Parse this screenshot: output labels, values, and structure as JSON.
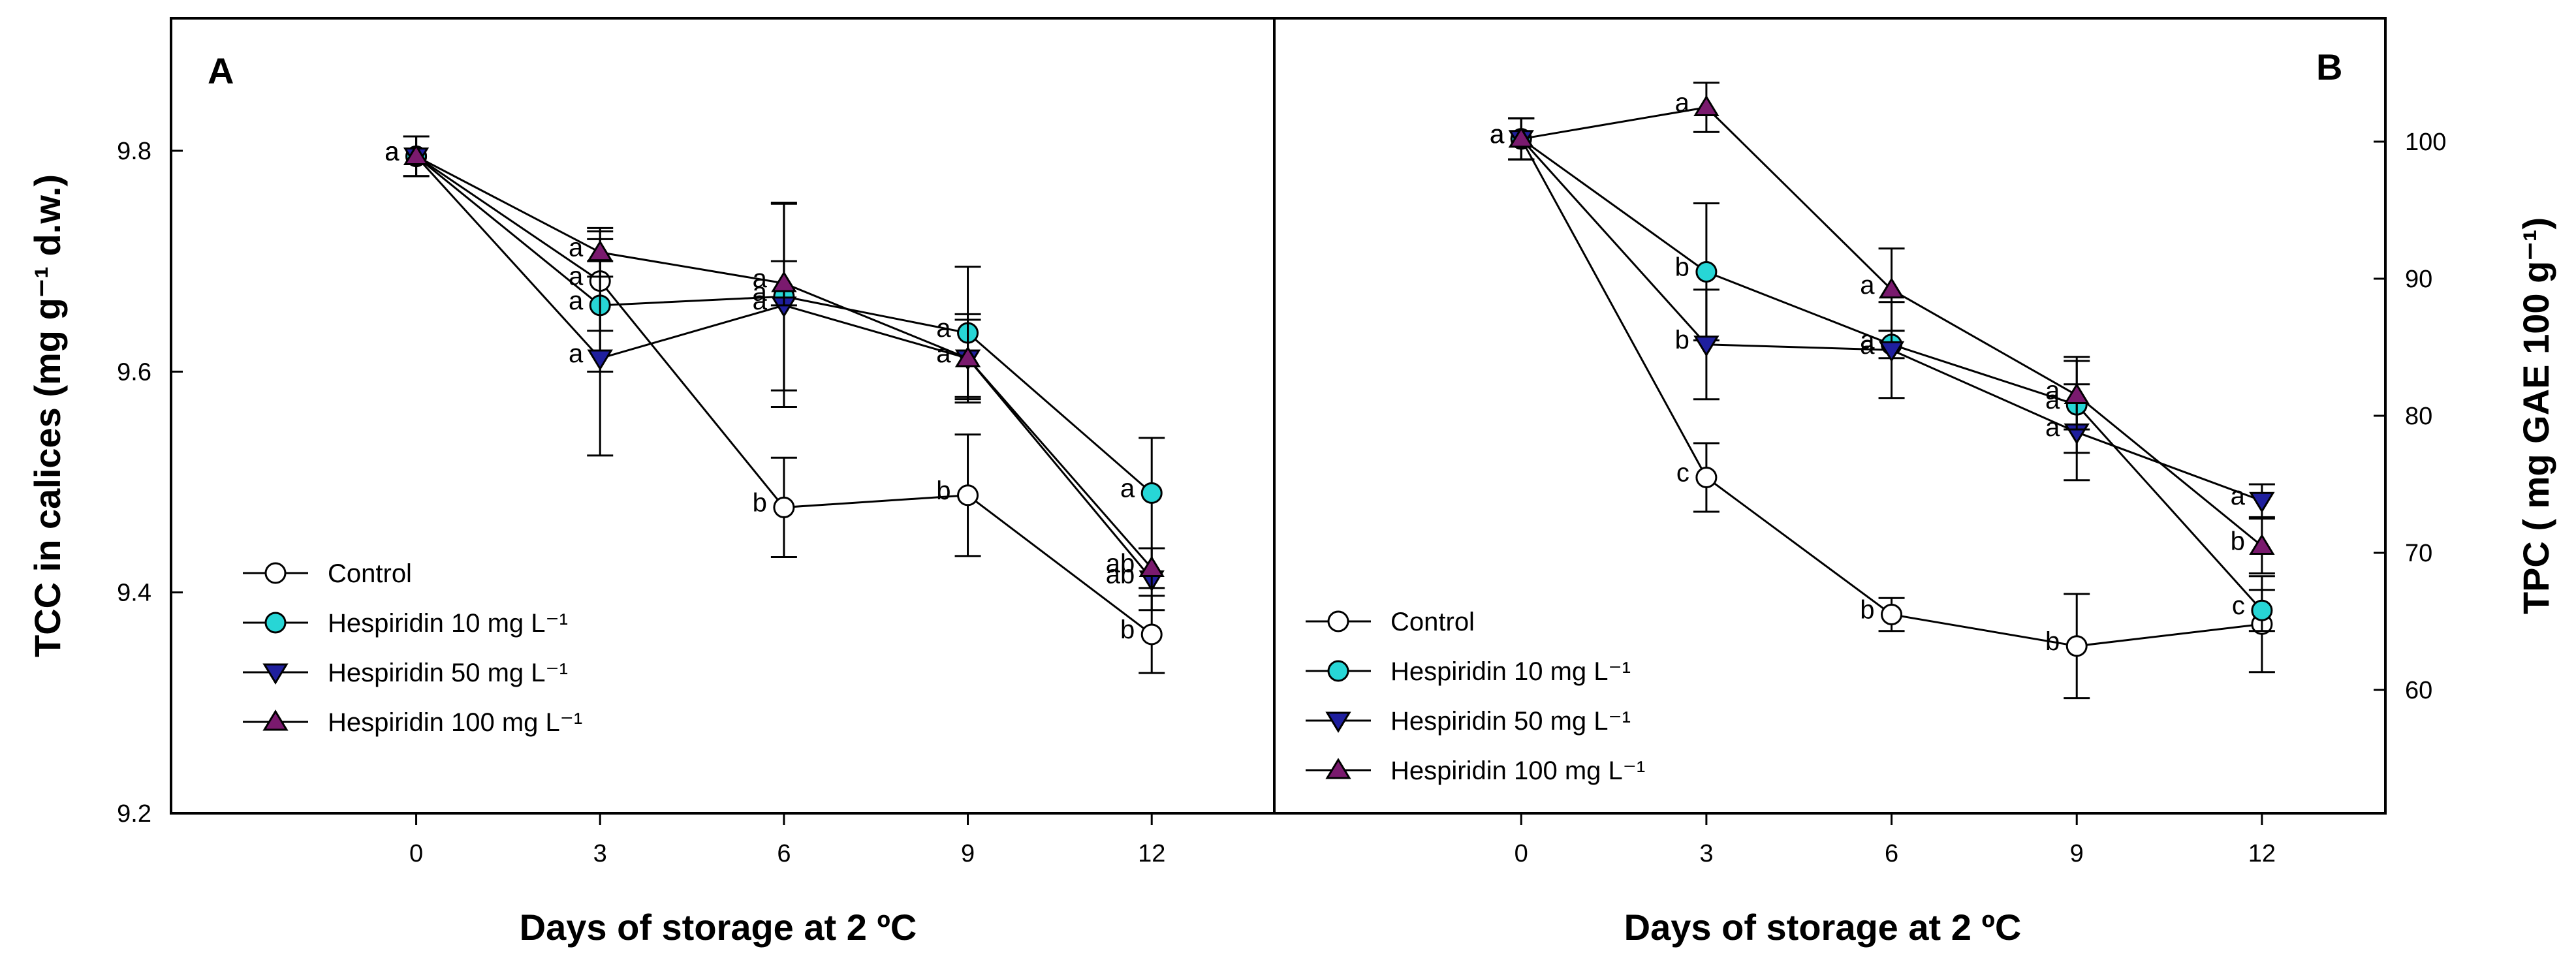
{
  "chart_data": [
    {
      "type": "line",
      "panel_label": "A",
      "xlabel": "Days of storage at 2 ºC",
      "ylabel": "TCC in calices (mg g⁻¹ d.w.)",
      "x": [
        0,
        3,
        6,
        9,
        12
      ],
      "x_ticks": [
        "0",
        "3",
        "6",
        "9",
        "12"
      ],
      "xlim": [
        -4,
        14
      ],
      "ylim": [
        9.2,
        9.92
      ],
      "y_ticks": [
        "9.2",
        "9.4",
        "9.6",
        "9.8"
      ],
      "legend_placement": "bottom-left",
      "grid": false,
      "series": [
        {
          "name": "Control",
          "marker": "circle",
          "color": "#ffffff",
          "values": [
            9.795,
            9.682,
            9.477,
            9.488,
            9.362
          ],
          "errors": [
            0.018,
            0.045,
            0.045,
            0.055,
            0.035
          ],
          "letters": [
            "a",
            "a",
            "b",
            "b",
            "b"
          ]
        },
        {
          "name": "Hespiridin 10 mg L⁻¹",
          "marker": "circle",
          "color": "#27d6d6",
          "values": [
            9.795,
            9.66,
            9.668,
            9.635,
            9.49
          ],
          "errors": [
            0.018,
            0.06,
            0.085,
            0.06,
            0.05
          ],
          "letters": [
            "a",
            "a",
            "a",
            "a",
            "a"
          ]
        },
        {
          "name": "Hespiridin 50 mg L⁻¹",
          "marker": "triangle-down",
          "color": "#1f1f9e",
          "values": [
            9.795,
            9.612,
            9.66,
            9.612,
            9.412
          ],
          "errors": [
            0.018,
            0.088,
            0.092,
            0.04,
            0.028
          ],
          "letters": [
            "a",
            "a",
            "a",
            "a",
            "ab"
          ]
        },
        {
          "name": "Hespiridin 100 mg L⁻¹",
          "marker": "triangle-up",
          "color": "#7a1a6e",
          "values": [
            9.795,
            9.708,
            9.68,
            9.612,
            9.422
          ],
          "errors": [
            0.018,
            0.022,
            0.02,
            0.035,
            0.018
          ],
          "letters": [
            "a",
            "a",
            "a",
            "a",
            "ab"
          ]
        }
      ]
    },
    {
      "type": "line",
      "panel_label": "B",
      "xlabel": "Days of storage at 2 ºC",
      "ylabel": "TPC ( mg GAE 100 g⁻¹)",
      "x": [
        0,
        3,
        6,
        9,
        12
      ],
      "x_ticks": [
        "0",
        "3",
        "6",
        "9",
        "12"
      ],
      "xlim": [
        -4,
        14
      ],
      "ylim": [
        51,
        109
      ],
      "y_ticks": [
        "60",
        "70",
        "80",
        "90",
        "100"
      ],
      "y_axis_side": "right",
      "legend_placement": "bottom-left",
      "grid": false,
      "series": [
        {
          "name": "Control",
          "marker": "circle",
          "color": "#ffffff",
          "values": [
            100.2,
            75.5,
            65.5,
            63.2,
            64.8
          ],
          "errors": [
            1.5,
            2.5,
            1.2,
            3.8,
            3.5
          ],
          "letters": [
            "a",
            "c",
            "b",
            "b",
            ""
          ]
        },
        {
          "name": "Hespiridin 10 mg L⁻¹",
          "marker": "circle",
          "color": "#27d6d6",
          "values": [
            100.2,
            90.5,
            85.2,
            80.8,
            65.8
          ],
          "errors": [
            1.5,
            5.0,
            1.0,
            3.5,
            1.5
          ],
          "letters": [
            "a",
            "b",
            "a",
            "a",
            "c"
          ]
        },
        {
          "name": "Hespiridin 50 mg L⁻¹",
          "marker": "triangle-down",
          "color": "#1f1f9e",
          "values": [
            100.2,
            85.2,
            84.8,
            78.8,
            73.8
          ],
          "errors": [
            1.5,
            4.0,
            3.5,
            3.5,
            1.2
          ],
          "letters": [
            "a",
            "b",
            "a",
            "a",
            "a"
          ]
        },
        {
          "name": "Hespiridin 100 mg L⁻¹",
          "marker": "triangle-up",
          "color": "#7a1a6e",
          "values": [
            100.2,
            102.5,
            89.2,
            81.5,
            70.5
          ],
          "errors": [
            1.5,
            1.8,
            3.0,
            2.5,
            2.0
          ],
          "letters": [
            "a",
            "a",
            "a",
            "a",
            "b"
          ]
        }
      ]
    }
  ]
}
